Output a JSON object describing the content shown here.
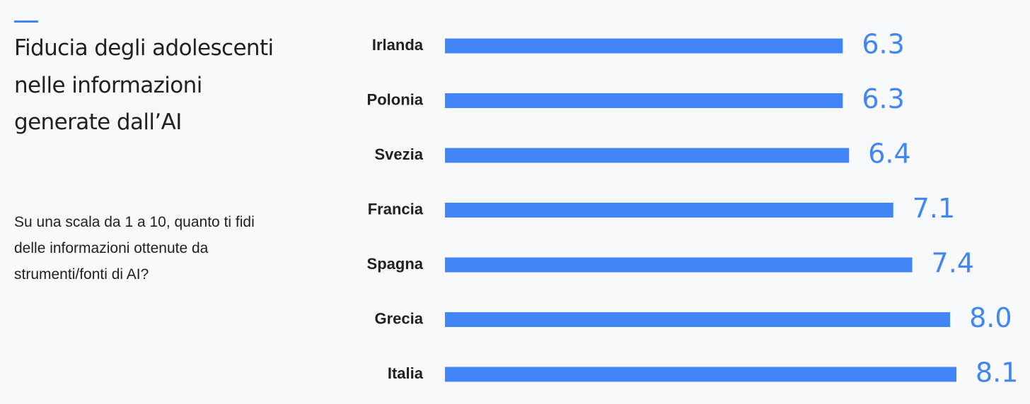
{
  "header": {
    "title": "Fiducia degli adolescenti nelle informazioni generate dall’AI",
    "subtitle": "Su una scala da 1 a 10, quanto ti fidi delle informazioni ottenute da strumenti/fonti di AI?"
  },
  "colors": {
    "bar": "#4285f4",
    "value_label": "#4285f4",
    "accent": "#4285f4"
  },
  "chart_data": {
    "type": "bar",
    "orientation": "horizontal",
    "title": "Fiducia degli adolescenti nelle informazioni generate dall’AI",
    "subtitle": "Su una scala da 1 a 10, quanto ti fidi delle informazioni ottenute da strumenti/fonti di AI?",
    "categories": [
      "Irlanda",
      "Polonia",
      "Svezia",
      "Francia",
      "Spagna",
      "Grecia",
      "Italia"
    ],
    "values": [
      6.3,
      6.3,
      6.4,
      7.1,
      7.4,
      8.0,
      8.1
    ],
    "value_labels": [
      "6.3",
      "6.3",
      "6.4",
      "7.1",
      "7.4",
      "8.0",
      "8.1"
    ],
    "xlim": [
      0,
      8.1
    ],
    "grid": false,
    "legend": "none",
    "xlabel": "",
    "ylabel": ""
  }
}
